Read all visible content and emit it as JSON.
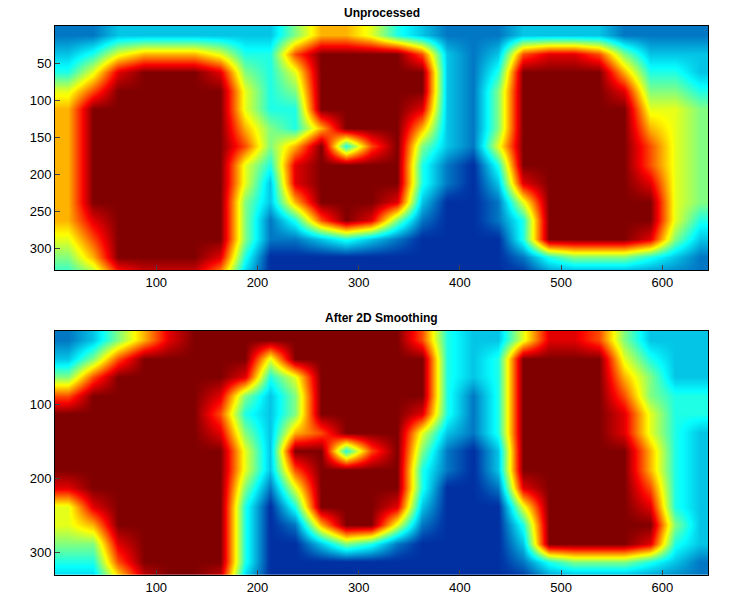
{
  "chart_data": [
    {
      "type": "heatmap",
      "title": "Unprocessed",
      "x": [
        12.5,
        37.5,
        62.5,
        87.5,
        112.5,
        137.5,
        162.5,
        187.5,
        212.5,
        237.5,
        262.5,
        287.5,
        312.5,
        337.5,
        362.5,
        387.5,
        412.5,
        437.5,
        462.5,
        487.5,
        512.5,
        537.5,
        562.5,
        587.5,
        612.5,
        637.5
      ],
      "y": [
        12.5,
        37.5,
        62.5,
        87.5,
        112.5,
        137.5,
        162.5,
        187.5,
        212.5,
        237.5,
        262.5,
        287.5,
        312.5,
        337.5
      ],
      "cells": [
        [
          0.2,
          0.2,
          0.3,
          0.3,
          0.3,
          0.3,
          0.3,
          0.3,
          0.3,
          0.5,
          0.7,
          0.7,
          0.6,
          0.4,
          0.3,
          0.2,
          0.2,
          0.2,
          0.3,
          0.3,
          0.3,
          0.3,
          0.2,
          0.2,
          0.2,
          0.2
        ],
        [
          0.3,
          0.4,
          0.6,
          0.7,
          0.7,
          0.7,
          0.6,
          0.4,
          0.4,
          0.8,
          1,
          1,
          1,
          1,
          0.8,
          0.3,
          0.2,
          0.3,
          0.8,
          0.9,
          0.9,
          0.8,
          0.5,
          0.3,
          0.3,
          0.3
        ],
        [
          0.4,
          0.6,
          0.9,
          1,
          1,
          1,
          0.9,
          0.5,
          0.4,
          0.6,
          1,
          1,
          1,
          1,
          1,
          0.3,
          0.2,
          0.4,
          1,
          1,
          1,
          1,
          0.7,
          0.4,
          0.4,
          0.3
        ],
        [
          0.6,
          0.8,
          1,
          1,
          1,
          1,
          1,
          0.6,
          0.4,
          0.5,
          1,
          1,
          1,
          1,
          1,
          0.3,
          0.2,
          0.5,
          1,
          1,
          1,
          1,
          0.9,
          0.5,
          0.5,
          0.4
        ],
        [
          0.7,
          1,
          1,
          1,
          1,
          1,
          1,
          0.6,
          0.4,
          0.4,
          1,
          1,
          1,
          1,
          0.9,
          0.3,
          0.2,
          0.5,
          1,
          1,
          1,
          1,
          1,
          0.6,
          0.6,
          0.5
        ],
        [
          0.7,
          1,
          1,
          1,
          1,
          1,
          1,
          0.7,
          0.5,
          0.4,
          0.7,
          1,
          1,
          1,
          0.7,
          0.3,
          0.2,
          0.5,
          1,
          1,
          1,
          1,
          1,
          0.7,
          0.6,
          0.5
        ],
        [
          0.7,
          1,
          1,
          1,
          1,
          1,
          1,
          0.8,
          0.5,
          0.7,
          1,
          0.4,
          0.8,
          1,
          0.5,
          0.3,
          0.2,
          0.6,
          1,
          1,
          1,
          1,
          1,
          0.8,
          0.6,
          0.5
        ],
        [
          0.7,
          1,
          1,
          1,
          1,
          1,
          1,
          0.6,
          0.4,
          0.9,
          1,
          1,
          1,
          1,
          0.4,
          0.2,
          0.1,
          0.4,
          1,
          1,
          1,
          1,
          1,
          0.8,
          0.6,
          0.5
        ],
        [
          0.7,
          1,
          1,
          1,
          1,
          1,
          1,
          0.6,
          0.3,
          0.9,
          1,
          1,
          1,
          1,
          0.4,
          0.2,
          0.1,
          0.3,
          0.9,
          1,
          1,
          1,
          1,
          0.9,
          0.6,
          0.5
        ],
        [
          0.7,
          1,
          1,
          1,
          1,
          1,
          1,
          0.5,
          0.3,
          0.7,
          1,
          1,
          1,
          0.9,
          0.3,
          0.1,
          0.1,
          0.2,
          0.6,
          1,
          1,
          1,
          1,
          1,
          0.6,
          0.5
        ],
        [
          0.7,
          0.9,
          1,
          1,
          1,
          1,
          1,
          0.5,
          0.2,
          0.4,
          0.8,
          1,
          0.9,
          0.5,
          0.2,
          0.1,
          0.1,
          0.2,
          0.4,
          1,
          1,
          1,
          1,
          1,
          0.6,
          0.4
        ],
        [
          0.6,
          0.8,
          1,
          1,
          1,
          1,
          1,
          0.5,
          0.2,
          0.2,
          0.3,
          0.4,
          0.3,
          0.2,
          0.1,
          0.1,
          0.1,
          0.1,
          0.4,
          1,
          1,
          1,
          1,
          0.9,
          0.5,
          0.3
        ],
        [
          0.5,
          0.7,
          1,
          1,
          1,
          1,
          0.9,
          0.4,
          0.1,
          0.1,
          0.1,
          0.1,
          0.1,
          0.1,
          0.1,
          0.1,
          0.1,
          0.1,
          0.2,
          0.4,
          0.5,
          0.5,
          0.5,
          0.4,
          0.3,
          0.2
        ],
        [
          0.4,
          0.5,
          0.8,
          0.9,
          0.9,
          0.9,
          0.7,
          0.3,
          0.1,
          0.1,
          0.1,
          0.1,
          0.1,
          0.1,
          0.1,
          0.1,
          0.1,
          0.1,
          0.1,
          0.2,
          0.2,
          0.2,
          0.2,
          0.2,
          0.2,
          0.2
        ]
      ],
      "zlim": [
        0,
        1
      ],
      "xlim": [
        0,
        645
      ],
      "ylim": [
        330,
        0
      ],
      "xticks": [
        100,
        200,
        300,
        400,
        500,
        600
      ],
      "yticks": [
        50,
        100,
        150,
        200,
        250,
        300
      ]
    },
    {
      "type": "heatmap",
      "title": "After 2D Smoothing",
      "x": [
        12.5,
        37.5,
        62.5,
        87.5,
        112.5,
        137.5,
        162.5,
        187.5,
        212.5,
        237.5,
        262.5,
        287.5,
        312.5,
        337.5,
        362.5,
        387.5,
        412.5,
        437.5,
        462.5,
        487.5,
        512.5,
        537.5,
        562.5,
        587.5,
        612.5,
        637.5
      ],
      "y": [
        12.5,
        37.5,
        62.5,
        87.5,
        112.5,
        137.5,
        162.5,
        187.5,
        212.5,
        237.5,
        262.5,
        287.5,
        312.5,
        337.5
      ],
      "cells": [
        [
          0.2,
          0.3,
          0.5,
          0.7,
          0.9,
          1,
          1,
          1,
          1,
          1,
          1,
          1,
          1,
          1,
          0.8,
          0.4,
          0.3,
          0.3,
          0.6,
          0.9,
          0.9,
          0.8,
          0.5,
          0.3,
          0.3,
          0.3
        ],
        [
          0.3,
          0.5,
          0.8,
          1,
          1,
          1,
          1,
          1,
          0.6,
          1,
          1,
          1,
          1,
          1,
          1,
          0.4,
          0.3,
          0.4,
          1,
          1,
          1,
          1,
          0.6,
          0.4,
          0.3,
          0.3
        ],
        [
          0.5,
          0.8,
          1,
          1,
          1,
          1,
          1,
          0.9,
          0.4,
          0.6,
          1,
          1,
          1,
          1,
          1,
          0.4,
          0.3,
          0.4,
          1,
          1,
          1,
          1,
          0.7,
          0.5,
          0.3,
          0.3
        ],
        [
          0.8,
          1,
          1,
          1,
          1,
          1,
          0.9,
          0.5,
          0.3,
          0.5,
          1,
          1,
          1,
          1,
          1,
          0.4,
          0.2,
          0.4,
          1,
          1,
          1,
          1,
          0.8,
          0.5,
          0.4,
          0.4
        ],
        [
          1,
          1,
          1,
          1,
          1,
          1,
          0.8,
          0.4,
          0.3,
          0.5,
          1,
          1,
          1,
          1,
          0.9,
          0.4,
          0.2,
          0.4,
          1,
          1,
          1,
          1,
          0.9,
          0.6,
          0.4,
          0.4
        ],
        [
          1,
          1,
          1,
          1,
          1,
          1,
          0.9,
          0.5,
          0.3,
          0.7,
          0.8,
          1,
          1,
          1,
          0.6,
          0.3,
          0.2,
          0.4,
          1,
          1,
          1,
          1,
          0.9,
          0.6,
          0.4,
          0.3
        ],
        [
          1,
          1,
          1,
          1,
          1,
          1,
          1,
          0.6,
          0.3,
          1,
          1,
          0.4,
          0.8,
          1,
          0.5,
          0.2,
          0.1,
          0.3,
          1,
          1,
          1,
          1,
          1,
          0.7,
          0.4,
          0.3
        ],
        [
          1,
          1,
          1,
          1,
          1,
          1,
          1,
          0.6,
          0.3,
          0.8,
          1,
          1,
          1,
          1,
          0.4,
          0.2,
          0.1,
          0.3,
          1,
          1,
          1,
          1,
          1,
          0.7,
          0.4,
          0.3
        ],
        [
          0.9,
          1,
          1,
          1,
          1,
          1,
          1,
          0.5,
          0.2,
          0.6,
          1,
          1,
          1,
          1,
          0.4,
          0.1,
          0.1,
          0.2,
          0.9,
          1,
          1,
          1,
          1,
          0.8,
          0.4,
          0.3
        ],
        [
          0.6,
          0.9,
          1,
          1,
          1,
          1,
          1,
          0.4,
          0.1,
          0.4,
          1,
          1,
          1,
          0.9,
          0.3,
          0.1,
          0.1,
          0.1,
          0.6,
          1,
          1,
          1,
          1,
          0.9,
          0.4,
          0.3
        ],
        [
          0.6,
          0.7,
          1,
          1,
          1,
          1,
          1,
          0.4,
          0.1,
          0.2,
          0.7,
          1,
          1,
          0.6,
          0.2,
          0.1,
          0.1,
          0.1,
          0.4,
          1,
          1,
          1,
          1,
          1,
          0.5,
          0.3
        ],
        [
          0.5,
          0.5,
          0.9,
          1,
          1,
          1,
          1,
          0.4,
          0.1,
          0.1,
          0.3,
          0.5,
          0.4,
          0.2,
          0.1,
          0.1,
          0.1,
          0.1,
          0.3,
          1,
          1,
          1,
          1,
          0.9,
          0.4,
          0.3
        ],
        [
          0.4,
          0.4,
          0.8,
          1,
          1,
          1,
          1,
          0.4,
          0.1,
          0.1,
          0.1,
          0.1,
          0.1,
          0.1,
          0.1,
          0.1,
          0.1,
          0.1,
          0.2,
          0.4,
          0.5,
          0.5,
          0.5,
          0.4,
          0.3,
          0.2
        ],
        [
          0.3,
          0.3,
          0.6,
          0.9,
          1,
          1,
          0.9,
          0.3,
          0.1,
          0.1,
          0.1,
          0.1,
          0.1,
          0.1,
          0.1,
          0.1,
          0.1,
          0.1,
          0.1,
          0.2,
          0.2,
          0.2,
          0.2,
          0.2,
          0.2,
          0.2
        ]
      ],
      "zlim": [
        0,
        1
      ],
      "xlim": [
        0,
        645
      ],
      "ylim": [
        330,
        0
      ],
      "xticks": [
        100,
        200,
        300,
        400,
        500,
        600
      ],
      "yticks": [
        100,
        200,
        300
      ]
    }
  ]
}
